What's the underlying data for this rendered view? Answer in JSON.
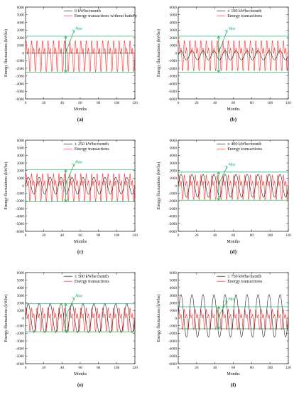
{
  "figure": {
    "colors": {
      "energy": "#ff2a2a",
      "battery": "#222222",
      "threshold": "#2ebd6a",
      "annotation": "#1aa55a",
      "axis": "#111111"
    }
  },
  "chart_data": [
    {
      "type": "line",
      "panel_label": "(a)",
      "xlabel": "Months",
      "ylabel": "Energy fluctuations (kWhe)",
      "xlim": [
        0,
        120
      ],
      "ylim": [
        -6000,
        6000
      ],
      "xticks": [
        0,
        20,
        40,
        60,
        80,
        100,
        120
      ],
      "yticks": [
        -6000,
        -5000,
        -4000,
        -3000,
        -2000,
        -1000,
        0,
        1000,
        2000,
        3000,
        4000,
        5000,
        6000
      ],
      "grid": false,
      "legend": "top-center",
      "annotation": {
        "text": "Mpp",
        "x": 44,
        "range": [
          -2500,
          2200
        ]
      },
      "thresholds": [
        2200,
        -2500
      ],
      "series": [
        {
          "name": "0 kWhe/month",
          "role": "battery",
          "amplitude": 0,
          "period": 12,
          "offset": 0
        },
        {
          "name": "Energy transactions without battery",
          "role": "energy",
          "max": 2000,
          "min": -2400,
          "period": 6
        }
      ]
    },
    {
      "type": "line",
      "panel_label": "(b)",
      "xlabel": "Months",
      "ylabel": "Energy fluctuations (kWhe)",
      "xlim": [
        0,
        120
      ],
      "ylim": [
        -6000,
        6000
      ],
      "xticks": [
        0,
        20,
        40,
        60,
        80,
        100,
        120
      ],
      "yticks": [
        -6000,
        -5000,
        -4000,
        -3000,
        -2000,
        -1000,
        0,
        1000,
        2000,
        3000,
        4000,
        5000,
        6000
      ],
      "grid": false,
      "legend": "top-center",
      "annotation": {
        "text": "Mpp",
        "x": 44,
        "range": [
          -2500,
          2200
        ]
      },
      "thresholds": [
        2200,
        -2500
      ],
      "series": [
        {
          "name": "± 100 kWhe/month",
          "role": "battery",
          "amplitude": 600,
          "period": 12,
          "offset": -300
        },
        {
          "name": "Energy transactions",
          "role": "energy",
          "max": 2000,
          "min": -2300,
          "period": 6
        }
      ]
    },
    {
      "type": "line",
      "panel_label": "(c)",
      "xlabel": "Months",
      "ylabel": "Energy fluctuations (kWhe)",
      "xlim": [
        0,
        120
      ],
      "ylim": [
        -6000,
        6000
      ],
      "xticks": [
        0,
        20,
        40,
        60,
        80,
        100,
        120
      ],
      "yticks": [
        -6000,
        -5000,
        -4000,
        -3000,
        -2000,
        -1000,
        0,
        1000,
        2000,
        3000,
        4000,
        5000,
        6000
      ],
      "grid": false,
      "legend": "top-center",
      "annotation": {
        "text": "Mpp",
        "x": 44,
        "range": [
          -2100,
          2100
        ]
      },
      "thresholds": [
        2100,
        -2100
      ],
      "series": [
        {
          "name": "± 250 kWhe/month",
          "role": "battery",
          "amplitude": 1100,
          "period": 12,
          "offset": 0
        },
        {
          "name": "Energy transactions",
          "role": "energy",
          "max": 1900,
          "min": -2000,
          "period": 6
        }
      ]
    },
    {
      "type": "line",
      "panel_label": "(d)",
      "xlabel": "Months",
      "ylabel": "Energy fluctuations (kWhe)",
      "xlim": [
        0,
        120
      ],
      "ylim": [
        -6000,
        6000
      ],
      "xticks": [
        0,
        20,
        40,
        60,
        80,
        100,
        120
      ],
      "yticks": [
        -6000,
        -5000,
        -4000,
        -3000,
        -2000,
        -1000,
        0,
        1000,
        2000,
        3000,
        4000,
        5000,
        6000
      ],
      "grid": false,
      "legend": "top-center",
      "annotation": {
        "text": "Mpp",
        "x": 44,
        "range": [
          -1900,
          1800
        ]
      },
      "thresholds": [
        1800,
        -1900
      ],
      "series": [
        {
          "name": "± 400 kWhe/month",
          "role": "battery",
          "amplitude": 1500,
          "period": 12,
          "offset": 0
        },
        {
          "name": "Energy transactions",
          "role": "energy",
          "max": 1700,
          "min": -1800,
          "period": 6
        }
      ]
    },
    {
      "type": "line",
      "panel_label": "(e)",
      "xlabel": "Months",
      "ylabel": "Energy fluctuations (kWhe)",
      "xlim": [
        0,
        120
      ],
      "ylim": [
        -6000,
        6000
      ],
      "xticks": [
        0,
        20,
        40,
        60,
        80,
        100,
        120
      ],
      "yticks": [
        -6000,
        -5000,
        -4000,
        -3000,
        -2000,
        -1000,
        0,
        1000,
        2000,
        3000,
        4000,
        5000,
        6000
      ],
      "grid": false,
      "legend": "top-center",
      "annotation": {
        "text": "Mpp",
        "x": 44,
        "range": [
          -1800,
          1900
        ]
      },
      "thresholds": [
        1900,
        -1800
      ],
      "series": [
        {
          "name": "± 500 kWhe/month",
          "role": "battery",
          "amplitude": 1900,
          "period": 12,
          "offset": 0
        },
        {
          "name": "Energy transactions",
          "role": "energy",
          "max": 1600,
          "min": -1700,
          "period": 6
        }
      ]
    },
    {
      "type": "line",
      "panel_label": "(f)",
      "xlabel": "Months",
      "ylabel": "Energy fluctuations (kWhe)",
      "xlim": [
        0,
        120
      ],
      "ylim": [
        -6000,
        6000
      ],
      "xticks": [
        0,
        20,
        40,
        60,
        80,
        100,
        120
      ],
      "yticks": [
        -6000,
        -5000,
        -4000,
        -3000,
        -2000,
        -1000,
        0,
        1000,
        2000,
        3000,
        4000,
        5000,
        6000
      ],
      "grid": false,
      "legend": "top-center",
      "annotation": {
        "text": "Mpp",
        "x": 44,
        "range": [
          -1400,
          1500
        ]
      },
      "thresholds": [
        1500,
        -1400
      ],
      "series": [
        {
          "name": "± 750 kWhe/month",
          "role": "battery",
          "amplitude": 2800,
          "period": 12,
          "offset": 300
        },
        {
          "name": "Energy transactions",
          "role": "energy",
          "max": 1400,
          "min": -1500,
          "period": 6
        }
      ]
    }
  ]
}
